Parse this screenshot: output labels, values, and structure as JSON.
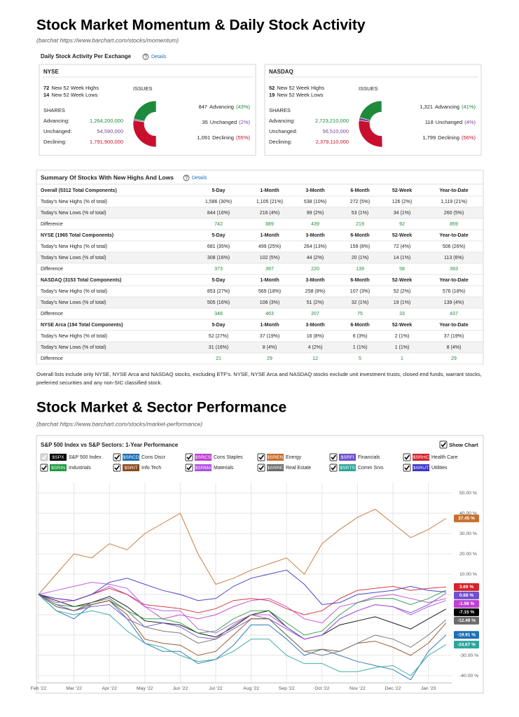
{
  "header": {
    "title": "Stock Market Momentum & Daily Stock Activity",
    "source": "(barchat https://www.barchart.com/stocks/momentum)"
  },
  "activity": {
    "title": "Daily Stock Activity Per Exchange",
    "details": "Details",
    "issues_title": "ISSUES",
    "shares_title": "SHARES",
    "exchanges": [
      {
        "name": "NYSE",
        "highs": {
          "count": "72",
          "label": "New 52 Week Highs"
        },
        "lows": {
          "count": "14",
          "label": "New 52 Week Lows"
        },
        "shares": [
          {
            "label": "Advancing:",
            "value": "1,264,200,000"
          },
          {
            "label": "Unchanged:",
            "value": "54,590,000"
          },
          {
            "label": "Declining:",
            "value": "1,791,900,000"
          }
        ],
        "issues": [
          {
            "count": "847",
            "label": "Advancing",
            "pct": 43,
            "pct_label": "(43%)"
          },
          {
            "count": "35",
            "label": "Unchanged",
            "pct": 2,
            "pct_label": "(2%)"
          },
          {
            "count": "1,091",
            "label": "Declining",
            "pct": 55,
            "pct_label": "(55%)"
          }
        ]
      },
      {
        "name": "NASDAQ",
        "highs": {
          "count": "52",
          "label": "New 52 Week Highs"
        },
        "lows": {
          "count": "19",
          "label": "New 52 Week Lows"
        },
        "shares": [
          {
            "label": "Advancing:",
            "value": "2,723,210,000"
          },
          {
            "label": "Unchanged:",
            "value": "56,510,000"
          },
          {
            "label": "Declining:",
            "value": "2,379,110,000"
          }
        ],
        "issues": [
          {
            "count": "1,321",
            "label": "Advancing",
            "pct": 41,
            "pct_label": "(41%)"
          },
          {
            "count": "118",
            "label": "Unchanged",
            "pct": 4,
            "pct_label": "(4%)"
          },
          {
            "count": "1,799",
            "label": "Declining",
            "pct": 56,
            "pct_label": "(56%)"
          }
        ]
      }
    ]
  },
  "summary": {
    "title": "Summary Of Stocks With New Highs And Lows",
    "details": "Details",
    "columns": [
      "5-Day",
      "1-Month",
      "3-Month",
      "6-Month",
      "52-Week",
      "Year-to-Date"
    ],
    "row_labels": [
      "Today's New Highs (% of total)",
      "Today's New Lows (% of total)",
      "Difference"
    ],
    "groups": [
      {
        "name": "Overall (5312 Total Components)",
        "rows": [
          [
            "1,586 (30%)",
            "1,105 (21%)",
            "538 (10%)",
            "272 (5%)",
            "126 (2%)",
            "1,119 (21%)"
          ],
          [
            "844 (16%)",
            "216 (4%)",
            "99 (2%)",
            "53 (1%)",
            "34 (1%)",
            "260 (5%)"
          ],
          [
            "742",
            "889",
            "439",
            "219",
            "92",
            "859"
          ]
        ]
      },
      {
        "name": "NYSE (1965 Total Components)",
        "rows": [
          [
            "681 (35%)",
            "499 (25%)",
            "264 (13%)",
            "159 (8%)",
            "72 (4%)",
            "506 (26%)"
          ],
          [
            "308 (16%)",
            "102 (5%)",
            "44 (2%)",
            "20 (1%)",
            "14 (1%)",
            "113 (6%)"
          ],
          [
            "373",
            "397",
            "220",
            "139",
            "58",
            "393"
          ]
        ]
      },
      {
        "name": "NASDAQ (3153 Total Components)",
        "rows": [
          [
            "853 (27%)",
            "569 (18%)",
            "258 (8%)",
            "107 (3%)",
            "52 (2%)",
            "576 (18%)"
          ],
          [
            "505 (16%)",
            "106 (3%)",
            "51 (2%)",
            "32 (1%)",
            "19 (1%)",
            "139 (4%)"
          ],
          [
            "348",
            "463",
            "207",
            "75",
            "33",
            "437"
          ]
        ]
      },
      {
        "name": "NYSE Arca (194 Total Components)",
        "rows": [
          [
            "52 (27%)",
            "37 (19%)",
            "16 (8%)",
            "6 (3%)",
            "2 (1%)",
            "37 (19%)"
          ],
          [
            "31 (16%)",
            "8 (4%)",
            "4 (2%)",
            "1 (1%)",
            "1 (1%)",
            "8 (4%)"
          ],
          [
            "21",
            "29",
            "12",
            "5",
            "1",
            "29"
          ]
        ]
      }
    ]
  },
  "note": "Overall lists include only NYSE, NYSE Arca and NASDAQ stocks, excluding ETF's. NYSE, NYSE Arca and NASDAQ stocks exclude unit investment trusts, closed end funds, warrant stocks, preferred securities and any non-SIC classified stock.",
  "section": {
    "title": "Stock Market & Sector Performance",
    "source": "(barchat https://www.barchart.com/stocks/market-performance)"
  },
  "chart_data": {
    "type": "line",
    "title": "S&P 500 Index vs S&P Sectors: 1-Year Performance",
    "show_chart": "Show Chart",
    "categories": [
      "Feb '22",
      null,
      "Mar '22",
      null,
      "Apr '22",
      null,
      "May '22",
      null,
      "Jun '22",
      null,
      "Jul '22",
      null,
      "Aug '22",
      null,
      "Sep '22",
      null,
      "Oct '22",
      null,
      "Nov '22",
      null,
      "Dec '22",
      null,
      "Jan '23",
      null
    ],
    "ylim": [
      -43.5,
      55
    ],
    "yticks": [
      {
        "value": 50,
        "label": "50.00 %"
      },
      {
        "value": 40,
        "label": "40.00 %"
      },
      {
        "value": 30,
        "label": "30.00 %"
      },
      {
        "value": 20,
        "label": "20.00 %"
      },
      {
        "value": 10,
        "label": "10.00 %"
      },
      {
        "value": 0,
        "label": "0.00 %"
      },
      {
        "value": -10,
        "label": "-10.00 %"
      },
      {
        "value": -20,
        "label": "-20.00 %"
      },
      {
        "value": -30,
        "label": "-30.00 %"
      },
      {
        "value": -40,
        "label": "-40.00 %"
      }
    ],
    "grid": true,
    "series": [
      {
        "ticker": "$SPX",
        "name": "S&P 500 Index",
        "color": "#000000",
        "end_label": "-7.15 %",
        "values": [
          0,
          -3,
          -6,
          -4,
          -1,
          -6,
          -13,
          -14,
          -15,
          -19,
          -21,
          -16,
          -10,
          -8,
          -16,
          -22,
          -20,
          -15,
          -13,
          -11,
          -14,
          -17,
          -12,
          -7.15
        ]
      },
      {
        "ticker": "$SRCD",
        "name": "Cons Discr",
        "color": "#1f6fb4",
        "end_label": "-19.91 %",
        "values": [
          0,
          -8,
          -12,
          -5,
          -3,
          -12,
          -24,
          -28,
          -28,
          -34,
          -32,
          -25,
          -15,
          -15,
          -22,
          -30,
          -27,
          -30,
          -33,
          -35,
          -37,
          -42,
          -28,
          -19.91
        ]
      },
      {
        "ticker": "$SRCS",
        "name": "Cons Staples",
        "color": "#c040d0",
        "end_label": "-1.98 %",
        "values": [
          0,
          -4,
          -3,
          0,
          4,
          0,
          -6,
          -12,
          -10,
          -12,
          -10,
          -6,
          -3,
          -2,
          -6,
          -12,
          -14,
          -6,
          -4,
          -1,
          0,
          -2,
          -4,
          -1.98
        ]
      },
      {
        "ticker": "$SREN",
        "name": "Energy",
        "color": "#c8702e",
        "end_label": "37.45 %",
        "values": [
          0,
          10,
          20,
          18,
          25,
          22,
          30,
          35,
          40,
          20,
          5,
          8,
          12,
          15,
          18,
          10,
          25,
          32,
          38,
          42,
          35,
          28,
          32,
          37.45
        ]
      },
      {
        "ticker": "$SRFI",
        "name": "Financials",
        "color": "#7050d0",
        "end_label": "0.68 %",
        "values": [
          0,
          -5,
          -8,
          -6,
          -5,
          -12,
          -16,
          -14,
          -16,
          -21,
          -22,
          -17,
          -12,
          -12,
          -17,
          -22,
          -20,
          -12,
          -8,
          -5,
          -6,
          -9,
          -5,
          0.68
        ]
      },
      {
        "ticker": "$SRHC",
        "name": "Health Care",
        "color": "#d4232b",
        "end_label": "3.69 %",
        "values": [
          0,
          -2,
          -3,
          0,
          3,
          0,
          -5,
          -6,
          -7,
          -9,
          -7,
          -3,
          -2,
          -3,
          -7,
          -10,
          -8,
          -2,
          2,
          3,
          4,
          2,
          3,
          3.69
        ]
      },
      {
        "ticker": "$SRIN",
        "name": "Industrials",
        "color": "#1f9a3f",
        "values": [
          0,
          -5,
          -6,
          -5,
          -3,
          -8,
          -12,
          -12,
          -14,
          -19,
          -18,
          -12,
          -8,
          -8,
          -14,
          -20,
          -18,
          -10,
          -4,
          -2,
          -2,
          -5,
          -2,
          2.1
        ]
      },
      {
        "ticker": "$SRIT",
        "name": "Info Tech",
        "color": "#8c4a1c",
        "values": [
          0,
          -6,
          -8,
          -5,
          -3,
          -10,
          -22,
          -24,
          -25,
          -30,
          -28,
          -20,
          -12,
          -12,
          -20,
          -28,
          -27,
          -28,
          -24,
          -23,
          -26,
          -30,
          -24,
          -14
        ]
      },
      {
        "ticker": "$SRMA",
        "name": "Materials",
        "color": "#b04ee0",
        "values": [
          0,
          2,
          4,
          6,
          5,
          3,
          -6,
          -8,
          -8,
          -17,
          -19,
          -14,
          -10,
          -10,
          -16,
          -22,
          -20,
          -12,
          -8,
          -5,
          -6,
          -10,
          -6,
          -3
        ]
      },
      {
        "ticker": "$SRRE",
        "name": "Real Estate",
        "color": "#6b6b6b",
        "end_label": "-12.48 %",
        "values": [
          0,
          -6,
          -8,
          -4,
          -2,
          -8,
          -16,
          -18,
          -19,
          -24,
          -22,
          -15,
          -10,
          -12,
          -20,
          -28,
          -30,
          -28,
          -24,
          -20,
          -22,
          -26,
          -20,
          -12.48
        ]
      },
      {
        "ticker": "$SRTS",
        "name": "Comm Srvs",
        "color": "#2ba59a",
        "end_label": "-24.67 %",
        "values": [
          0,
          -8,
          -10,
          -8,
          -10,
          -18,
          -24,
          -26,
          -30,
          -33,
          -32,
          -28,
          -22,
          -22,
          -30,
          -34,
          -34,
          -38,
          -38,
          -36,
          -35,
          -40,
          -30,
          -24.67
        ]
      },
      {
        "ticker": "$SRUT",
        "name": "Utilities",
        "color": "#3a33c8",
        "values": [
          0,
          -2,
          -3,
          0,
          6,
          8,
          5,
          2,
          0,
          -3,
          -2,
          4,
          8,
          10,
          12,
          5,
          -5,
          -4,
          0,
          1,
          2,
          4,
          2,
          1.2
        ]
      }
    ]
  }
}
